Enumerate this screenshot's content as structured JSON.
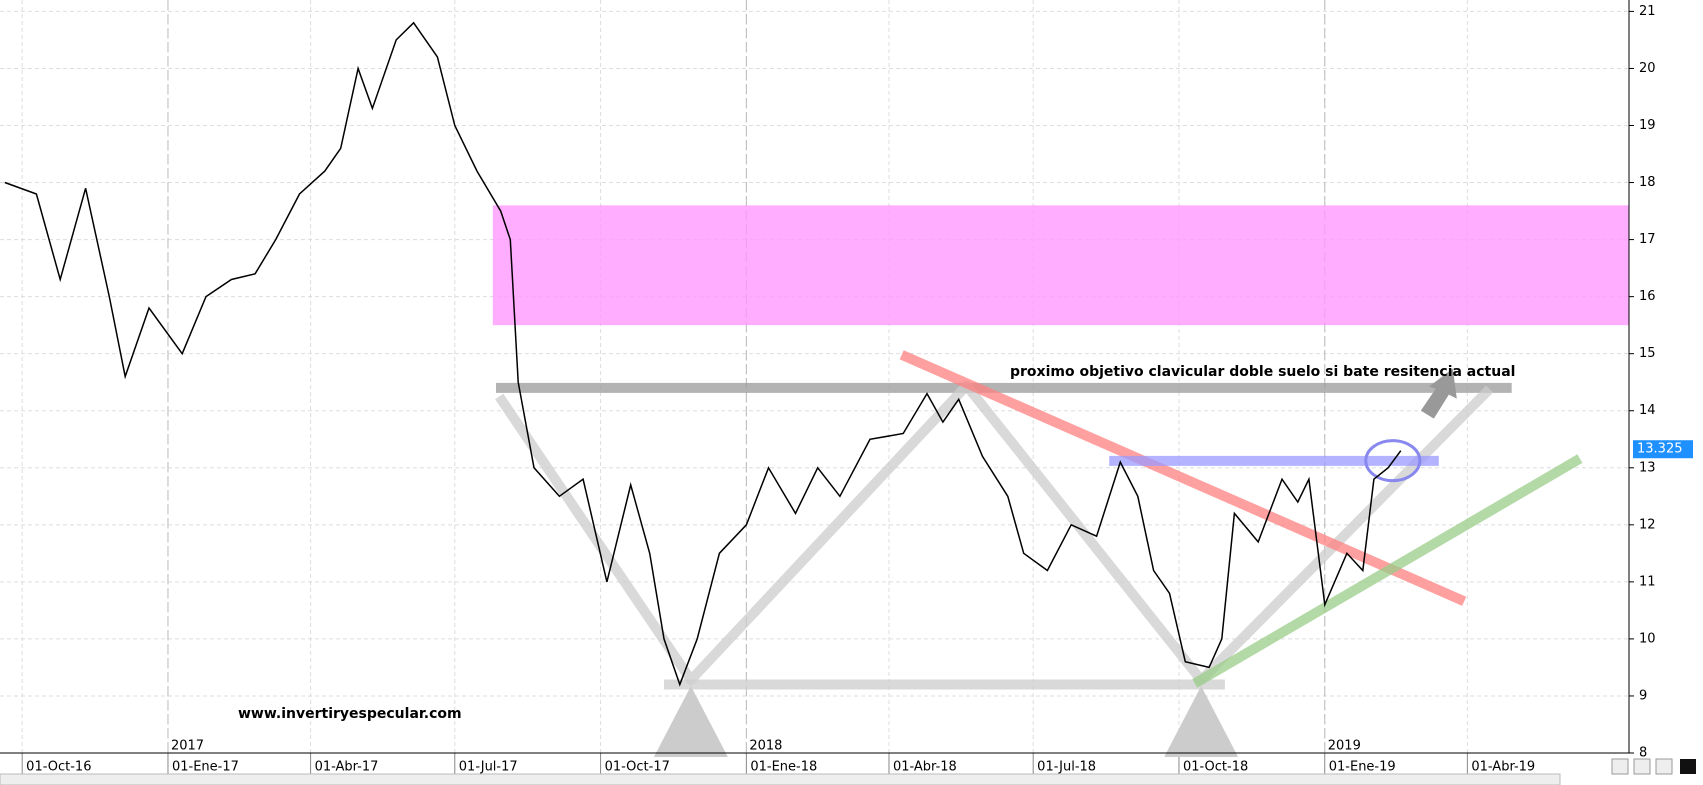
{
  "chart_data": {
    "type": "line",
    "color": "#000000",
    "x": [
      "2016-09-20",
      "2016-10-10",
      "2016-10-25",
      "2016-11-10",
      "2016-11-25",
      "2016-12-05",
      "2016-12-20",
      "2017-01-10",
      "2017-01-25",
      "2017-02-10",
      "2017-02-25",
      "2017-03-10",
      "2017-03-25",
      "2017-04-10",
      "2017-04-20",
      "2017-05-01",
      "2017-05-10",
      "2017-05-25",
      "2017-06-05",
      "2017-06-20",
      "2017-07-01",
      "2017-07-15",
      "2017-07-30",
      "2017-08-05",
      "2017-08-10",
      "2017-08-20",
      "2017-09-05",
      "2017-09-20",
      "2017-10-05",
      "2017-10-20",
      "2017-11-01",
      "2017-11-10",
      "2017-11-20",
      "2017-12-01",
      "2017-12-15",
      "2018-01-01",
      "2018-01-15",
      "2018-02-01",
      "2018-02-15",
      "2018-03-01",
      "2018-03-20",
      "2018-04-10",
      "2018-04-25",
      "2018-05-05",
      "2018-05-15",
      "2018-05-30",
      "2018-06-15",
      "2018-06-25",
      "2018-07-10",
      "2018-07-25",
      "2018-08-10",
      "2018-08-25",
      "2018-09-05",
      "2018-09-15",
      "2018-09-25",
      "2018-10-05",
      "2018-10-20",
      "2018-10-28",
      "2018-11-05",
      "2018-11-20",
      "2018-12-05",
      "2018-12-15",
      "2018-12-22",
      "2019-01-01",
      "2019-01-15",
      "2019-01-25",
      "2019-02-01",
      "2019-02-10",
      "2019-02-18"
    ],
    "values": [
      18.0,
      17.8,
      16.3,
      17.9,
      16.0,
      14.6,
      15.8,
      15.0,
      16.0,
      16.3,
      16.4,
      17.0,
      17.8,
      18.2,
      18.6,
      20.0,
      19.3,
      20.5,
      20.8,
      20.2,
      19.0,
      18.2,
      17.5,
      17.0,
      14.5,
      13.0,
      12.5,
      12.8,
      11.0,
      12.7,
      11.5,
      10.0,
      9.2,
      10.0,
      11.5,
      12.0,
      13.0,
      12.2,
      13.0,
      12.5,
      13.5,
      13.6,
      14.3,
      13.8,
      14.2,
      13.2,
      12.5,
      11.5,
      11.2,
      12.0,
      11.8,
      13.1,
      12.5,
      11.2,
      10.8,
      9.6,
      9.5,
      10.0,
      12.2,
      11.7,
      12.8,
      12.4,
      12.8,
      10.6,
      11.5,
      11.2,
      12.8,
      13.0,
      13.3
    ],
    "xlim": [
      "2016-09-17",
      "2019-07-12"
    ],
    "ylim": [
      8,
      21.2
    ],
    "yticks": [
      8,
      9,
      10,
      11,
      12,
      13,
      14,
      15,
      16,
      17,
      18,
      19,
      20,
      21
    ],
    "xticks": [
      {
        "value": "2016-10-01",
        "label": "01-Oct-16"
      },
      {
        "value": "2017-01-01",
        "label": "01-Ene-17"
      },
      {
        "value": "2017-04-01",
        "label": "01-Abr-17"
      },
      {
        "value": "2017-07-01",
        "label": "01-Jul-17"
      },
      {
        "value": "2017-10-01",
        "label": "01-Oct-17"
      },
      {
        "value": "2018-01-01",
        "label": "01-Ene-18"
      },
      {
        "value": "2018-04-01",
        "label": "01-Abr-18"
      },
      {
        "value": "2018-07-01",
        "label": "01-Jul-18"
      },
      {
        "value": "2018-10-01",
        "label": "01-Oct-18"
      },
      {
        "value": "2019-01-01",
        "label": "01-Ene-19"
      },
      {
        "value": "2019-04-01",
        "label": "01-Abr-19"
      }
    ],
    "year_labels": [
      {
        "value": "2017-01-01",
        "label": "2017"
      },
      {
        "value": "2018-01-01",
        "label": "2018"
      },
      {
        "value": "2019-01-01",
        "label": "2019"
      }
    ],
    "grid": true,
    "last_price": 13.325,
    "annotation": "proximo objetivo clavicular doble suelo si bate resitencia actual",
    "watermark": "www.invertiryespecular.com",
    "zone": {
      "x": [
        "2017-07-25",
        "2019-07-12"
      ],
      "y": [
        15.5,
        17.6
      ],
      "color": "#ff99ff"
    },
    "lines": [
      {
        "x": [
          "2017-07-27",
          "2019-04-29"
        ],
        "y": [
          14.4,
          14.4
        ],
        "color": "#999999"
      },
      {
        "x": [
          "2017-11-10",
          "2018-10-30"
        ],
        "y": [
          9.2,
          9.2
        ],
        "color": "#cccccc"
      },
      {
        "x": [
          "2017-07-29",
          "2017-11-27",
          "2018-05-20",
          "2018-10-15",
          "2019-04-15"
        ],
        "y": [
          14.25,
          9.28,
          14.44,
          9.28,
          14.38
        ],
        "color": "#cccccc"
      },
      {
        "x": [
          "2018-04-09",
          "2019-03-30"
        ],
        "y": [
          14.98,
          10.66
        ],
        "color": "#ff8080"
      },
      {
        "x": [
          "2018-08-18",
          "2019-03-14"
        ],
        "y": [
          13.12,
          13.12
        ],
        "color": "#9999ff"
      },
      {
        "x": [
          "2018-10-11",
          "2019-06-11"
        ],
        "y": [
          9.22,
          13.16
        ],
        "color": "#99cc88"
      }
    ]
  }
}
